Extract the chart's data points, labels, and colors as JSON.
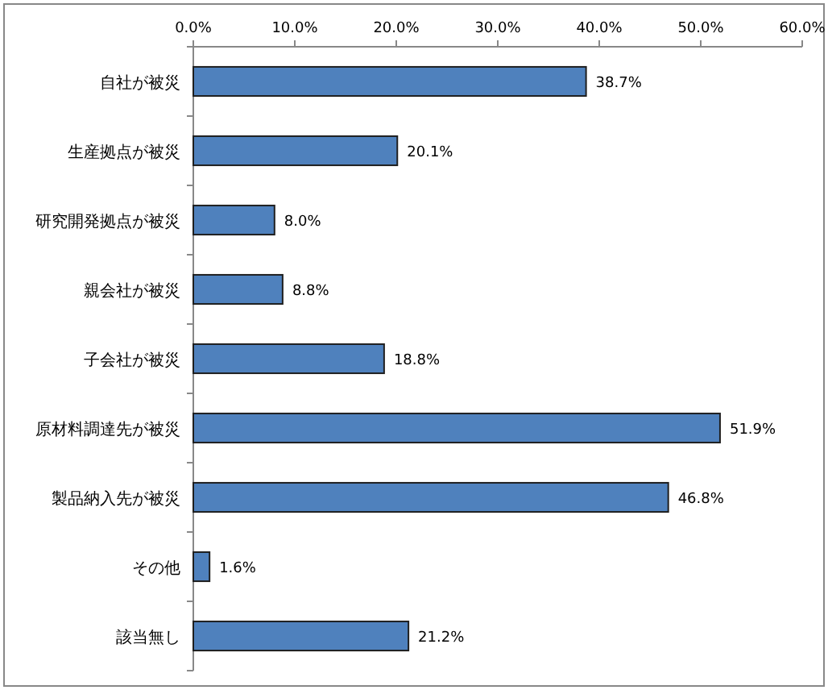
{
  "chart_data": {
    "type": "bar",
    "orientation": "horizontal",
    "categories": [
      "自社が被災",
      "生産拠点が被災",
      "研究開発拠点が被災",
      "親会社が被災",
      "子会社が被災",
      "原材料調達先が被災",
      "製品納入先が被災",
      "その他",
      "該当無し"
    ],
    "values": [
      38.7,
      20.1,
      8.0,
      8.8,
      18.8,
      51.9,
      46.8,
      1.6,
      21.2
    ],
    "value_labels": [
      "38.7%",
      "20.1%",
      "8.0%",
      "8.8%",
      "18.8%",
      "51.9%",
      "46.8%",
      "1.6%",
      "21.2%"
    ],
    "color": "#4f81bd",
    "xlim": [
      0,
      60
    ],
    "xticks": [
      {
        "value": 0,
        "label": "0.0%"
      },
      {
        "value": 10,
        "label": "10.0%"
      },
      {
        "value": 20,
        "label": "20.0%"
      },
      {
        "value": 30,
        "label": "30.0%"
      },
      {
        "value": 40,
        "label": "40.0%"
      },
      {
        "value": 50,
        "label": "50.0%"
      },
      {
        "value": 60,
        "label": "60.0%"
      }
    ]
  }
}
